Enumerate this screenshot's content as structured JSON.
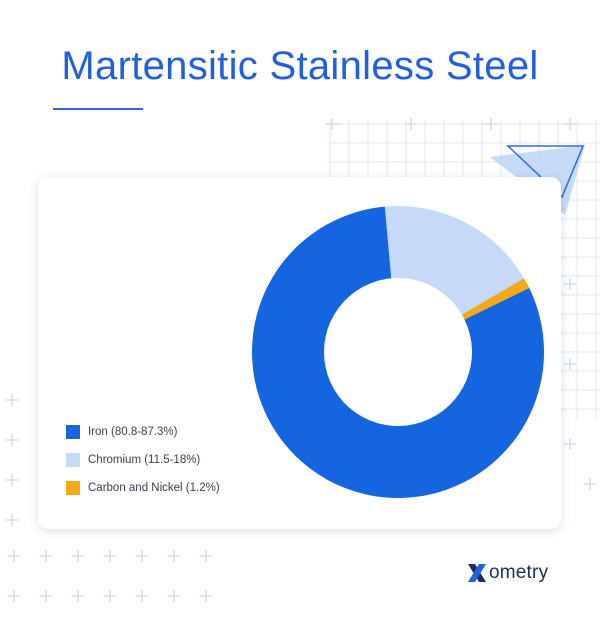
{
  "page": {
    "title": "Martensitic Stainless Steel",
    "brand": "ometry",
    "brand_icon": "xometry-x-logo",
    "colors": {
      "title": "#1f5fe0",
      "iron": "#1565e0",
      "chromium": "#c6d9f6",
      "carbon_nickel": "#f5a818"
    }
  },
  "chart_data": {
    "type": "pie",
    "style": "donut",
    "title": "Martensitic Stainless Steel",
    "legend_position": "left-bottom",
    "categories": [
      "Iron (80.8-87.3%)",
      "Chromium (11.5-18%)",
      "Carbon and Nickel (1.2%)"
    ],
    "values": [
      80.8,
      18.0,
      1.2
    ],
    "colors": [
      "#1565e0",
      "#c6d9f6",
      "#f5a818"
    ]
  }
}
